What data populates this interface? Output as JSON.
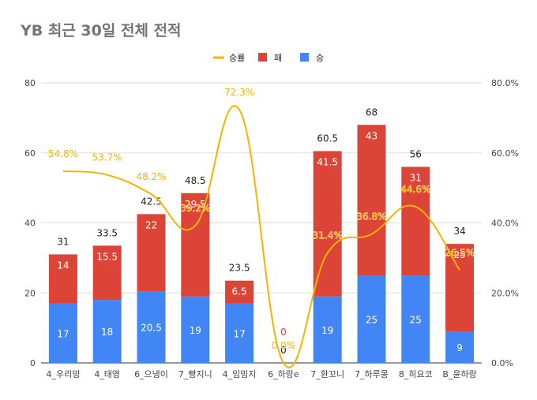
{
  "chart_data": {
    "type": "bar",
    "title": "YB 최근 30일 전체 전적",
    "stacked": true,
    "categories": [
      "4_우리밍",
      "4_태영",
      "6_으냉이",
      "7_빵지니",
      "4_임밍지",
      "6_하랑e",
      "7_환꼬니",
      "7_하루몽",
      "8_히요코",
      "B_윤하랑"
    ],
    "series": [
      {
        "name": "승",
        "color": "#4285f4",
        "values": [
          17,
          18,
          20.5,
          19,
          17,
          0,
          19,
          25,
          25,
          9
        ]
      },
      {
        "name": "패",
        "color": "#db4437",
        "values": [
          14,
          15.5,
          22,
          29.5,
          6.5,
          0,
          41.5,
          43,
          31,
          25
        ]
      }
    ],
    "totals": [
      31,
      33.5,
      42.5,
      48.5,
      23.5,
      0,
      60.5,
      68,
      56,
      34
    ],
    "line_series": {
      "name": "승률",
      "color": "#f4b400",
      "axis": "right",
      "values": [
        54.8,
        53.7,
        48.2,
        39.2,
        72.3,
        0.0,
        31.4,
        36.8,
        44.6,
        26.5
      ],
      "labels": [
        "54.8%",
        "53.7%",
        "48.2%",
        "39.2%",
        "72.3%",
        "0.0%",
        "31.4%",
        "36.8%",
        "44.6%",
        "26.5%"
      ]
    },
    "legend": [
      {
        "name": "승률",
        "color": "#f4b400",
        "kind": "line"
      },
      {
        "name": "패",
        "color": "#db4437",
        "kind": "box"
      },
      {
        "name": "승",
        "color": "#4285f4",
        "kind": "box"
      }
    ],
    "legend_position": "top",
    "ylim": [
      0,
      80
    ],
    "yticks": [
      "0",
      "20",
      "40",
      "60",
      "80"
    ],
    "y2lim": [
      0,
      80
    ],
    "y2ticks": [
      "0.0%",
      "20.0%",
      "40.0%",
      "60.0%",
      "80.0%"
    ],
    "grid": true
  }
}
